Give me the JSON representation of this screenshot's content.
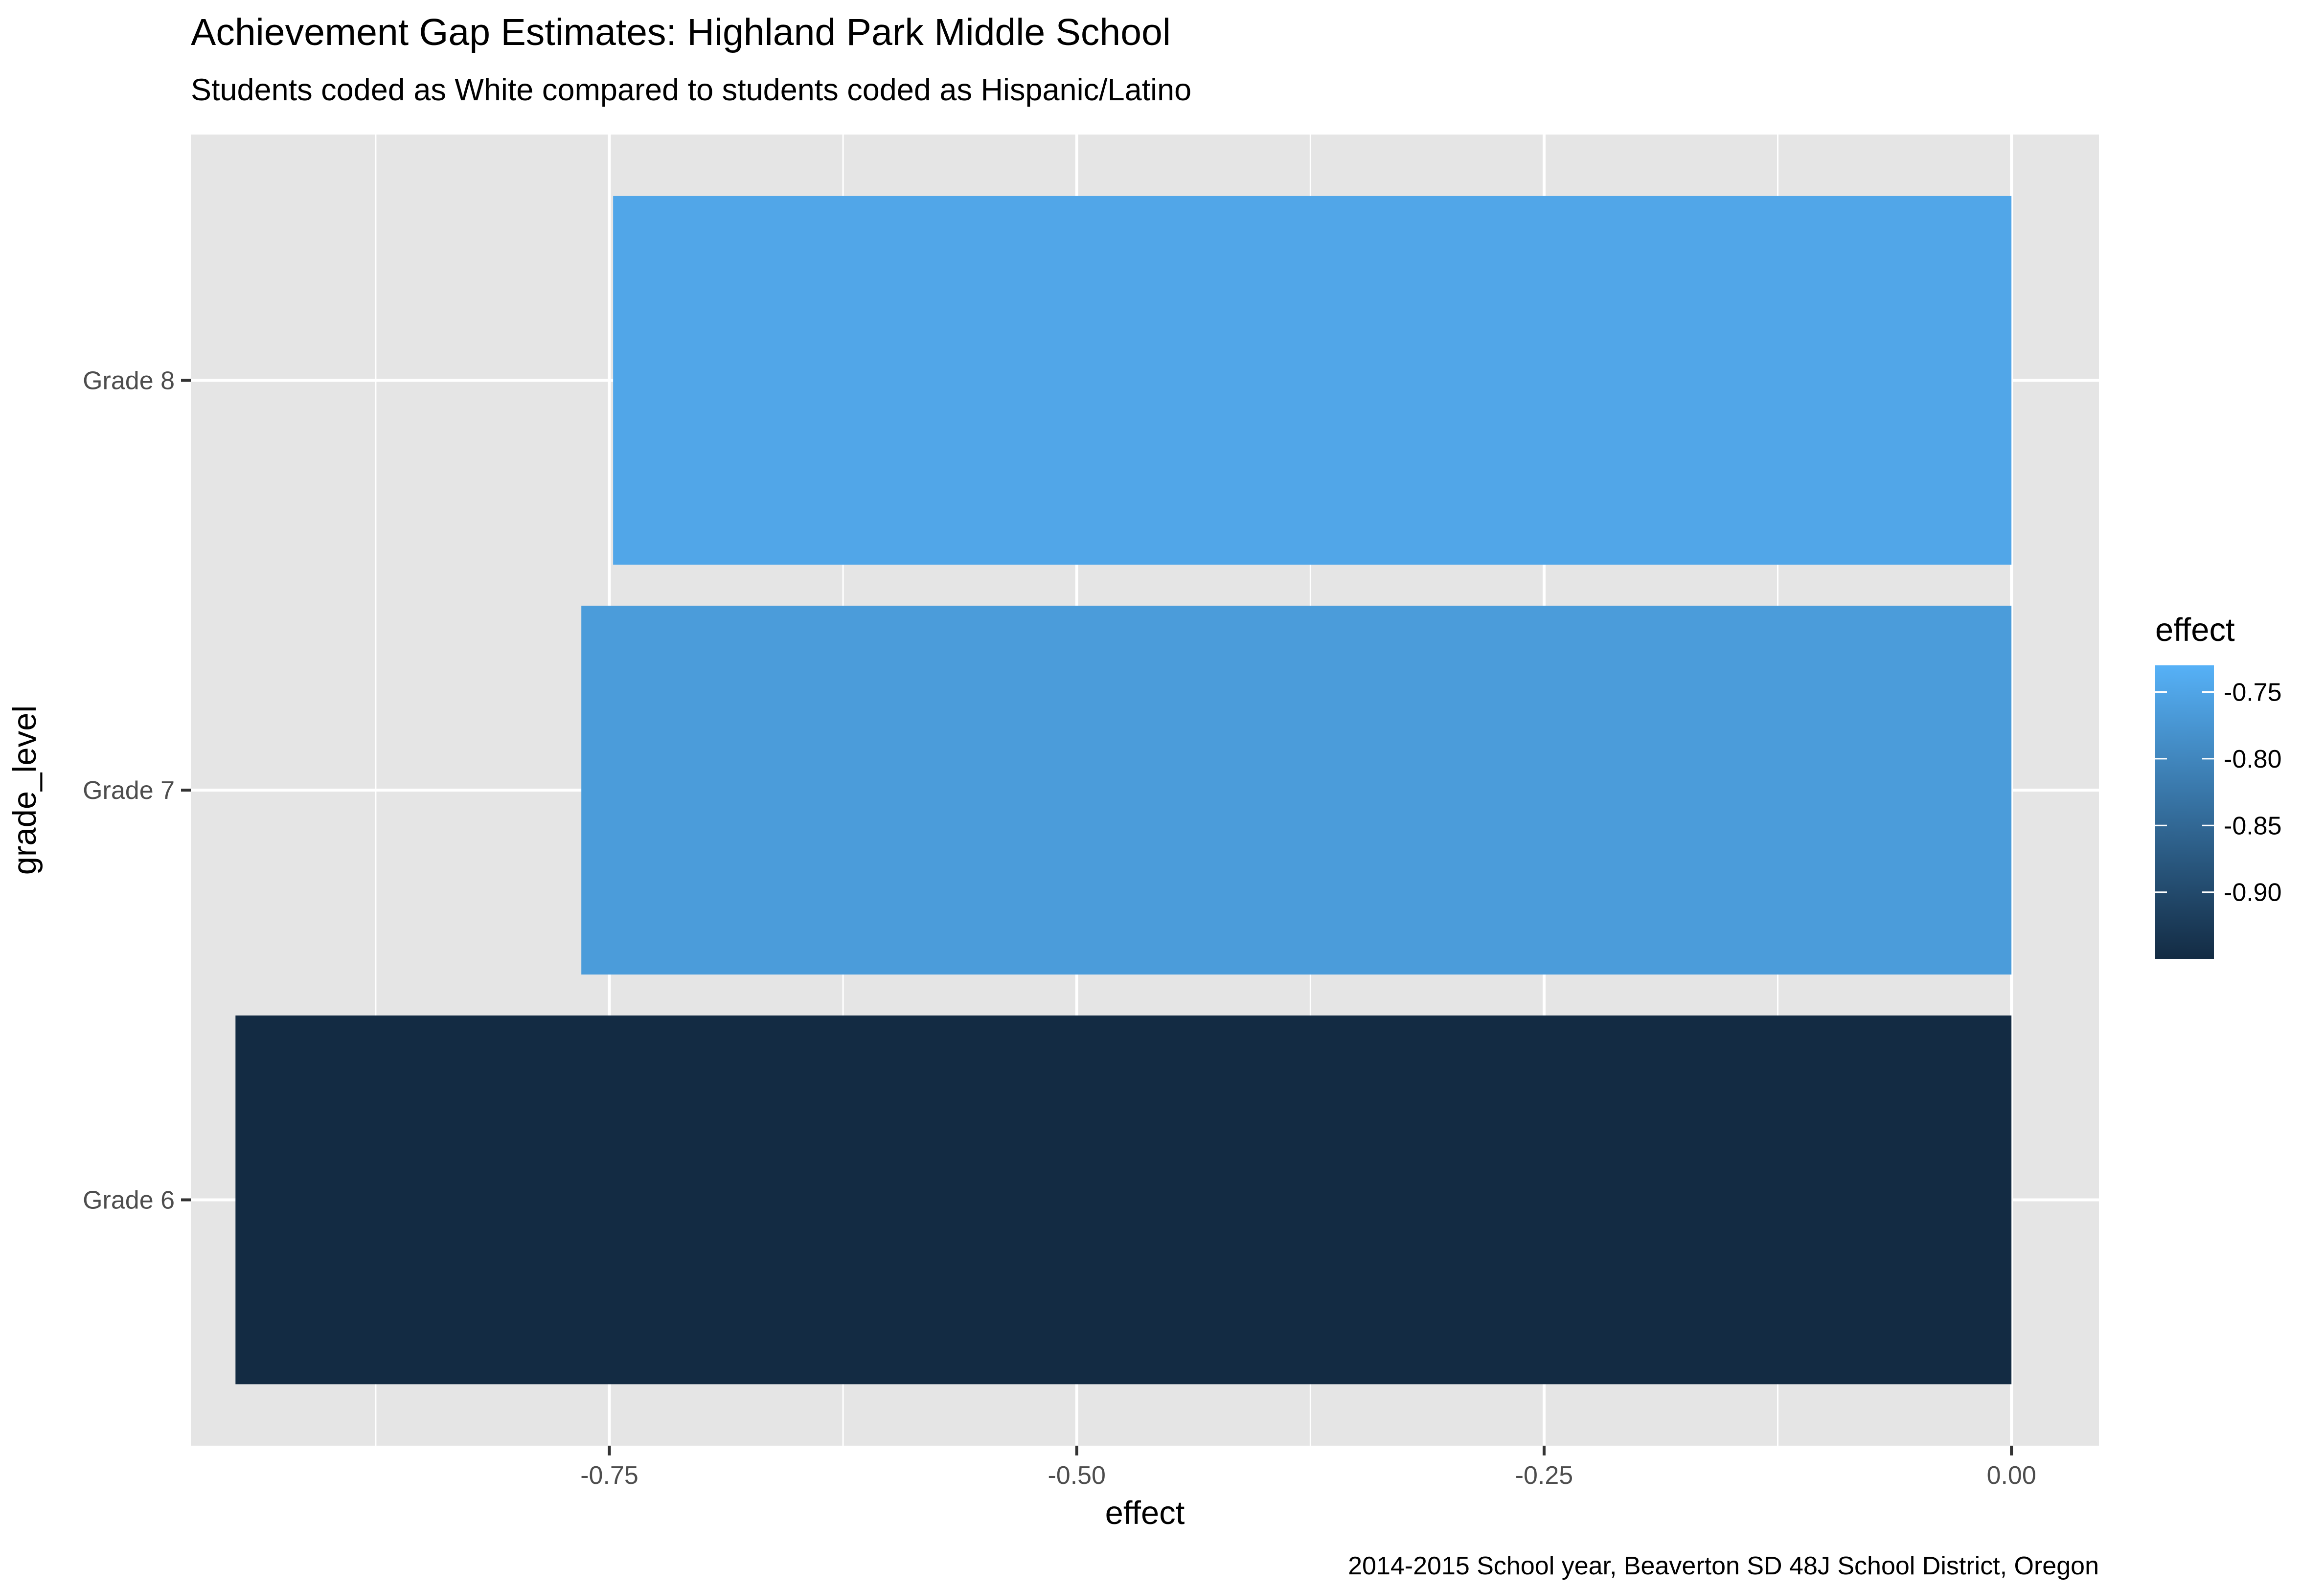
{
  "chart_data": {
    "type": "bar",
    "orientation": "horizontal",
    "title": "Achievement Gap Estimates: Highland Park Middle School",
    "subtitle": "Students coded as White compared to students coded as Hispanic/Latino",
    "caption": "2014-2015 School year, Beaverton SD 48J School District, Oregon",
    "xlabel": "effect",
    "ylabel": "grade_level",
    "categories": [
      "Grade 6",
      "Grade 7",
      "Grade 8"
    ],
    "values": [
      -0.95,
      -0.765,
      -0.748
    ],
    "xlim": [
      -0.9739,
      0.0468
    ],
    "x_ticks": [
      {
        "value": -0.75,
        "label": "-0.75"
      },
      {
        "value": -0.5,
        "label": "-0.50"
      },
      {
        "value": -0.25,
        "label": "-0.25"
      },
      {
        "value": 0,
        "label": "0.00"
      }
    ],
    "x_minor_ticks": [
      -0.875,
      -0.625,
      -0.375,
      -0.125
    ],
    "grid": true,
    "legend": {
      "title": "effect",
      "placement": "right",
      "range": [
        -0.95,
        -0.73
      ],
      "color_low": "#132b43",
      "color_high": "#56b1f7",
      "ticks": [
        {
          "value": -0.75,
          "label": "-0.75"
        },
        {
          "value": -0.8,
          "label": "-0.80"
        },
        {
          "value": -0.85,
          "label": "-0.85"
        },
        {
          "value": -0.9,
          "label": "-0.90"
        }
      ]
    },
    "colors": {
      "panel_background": "#e5e5e5",
      "gridline": "#ffffff",
      "text": "#000000",
      "tick_text": "#4d4d4d"
    }
  }
}
